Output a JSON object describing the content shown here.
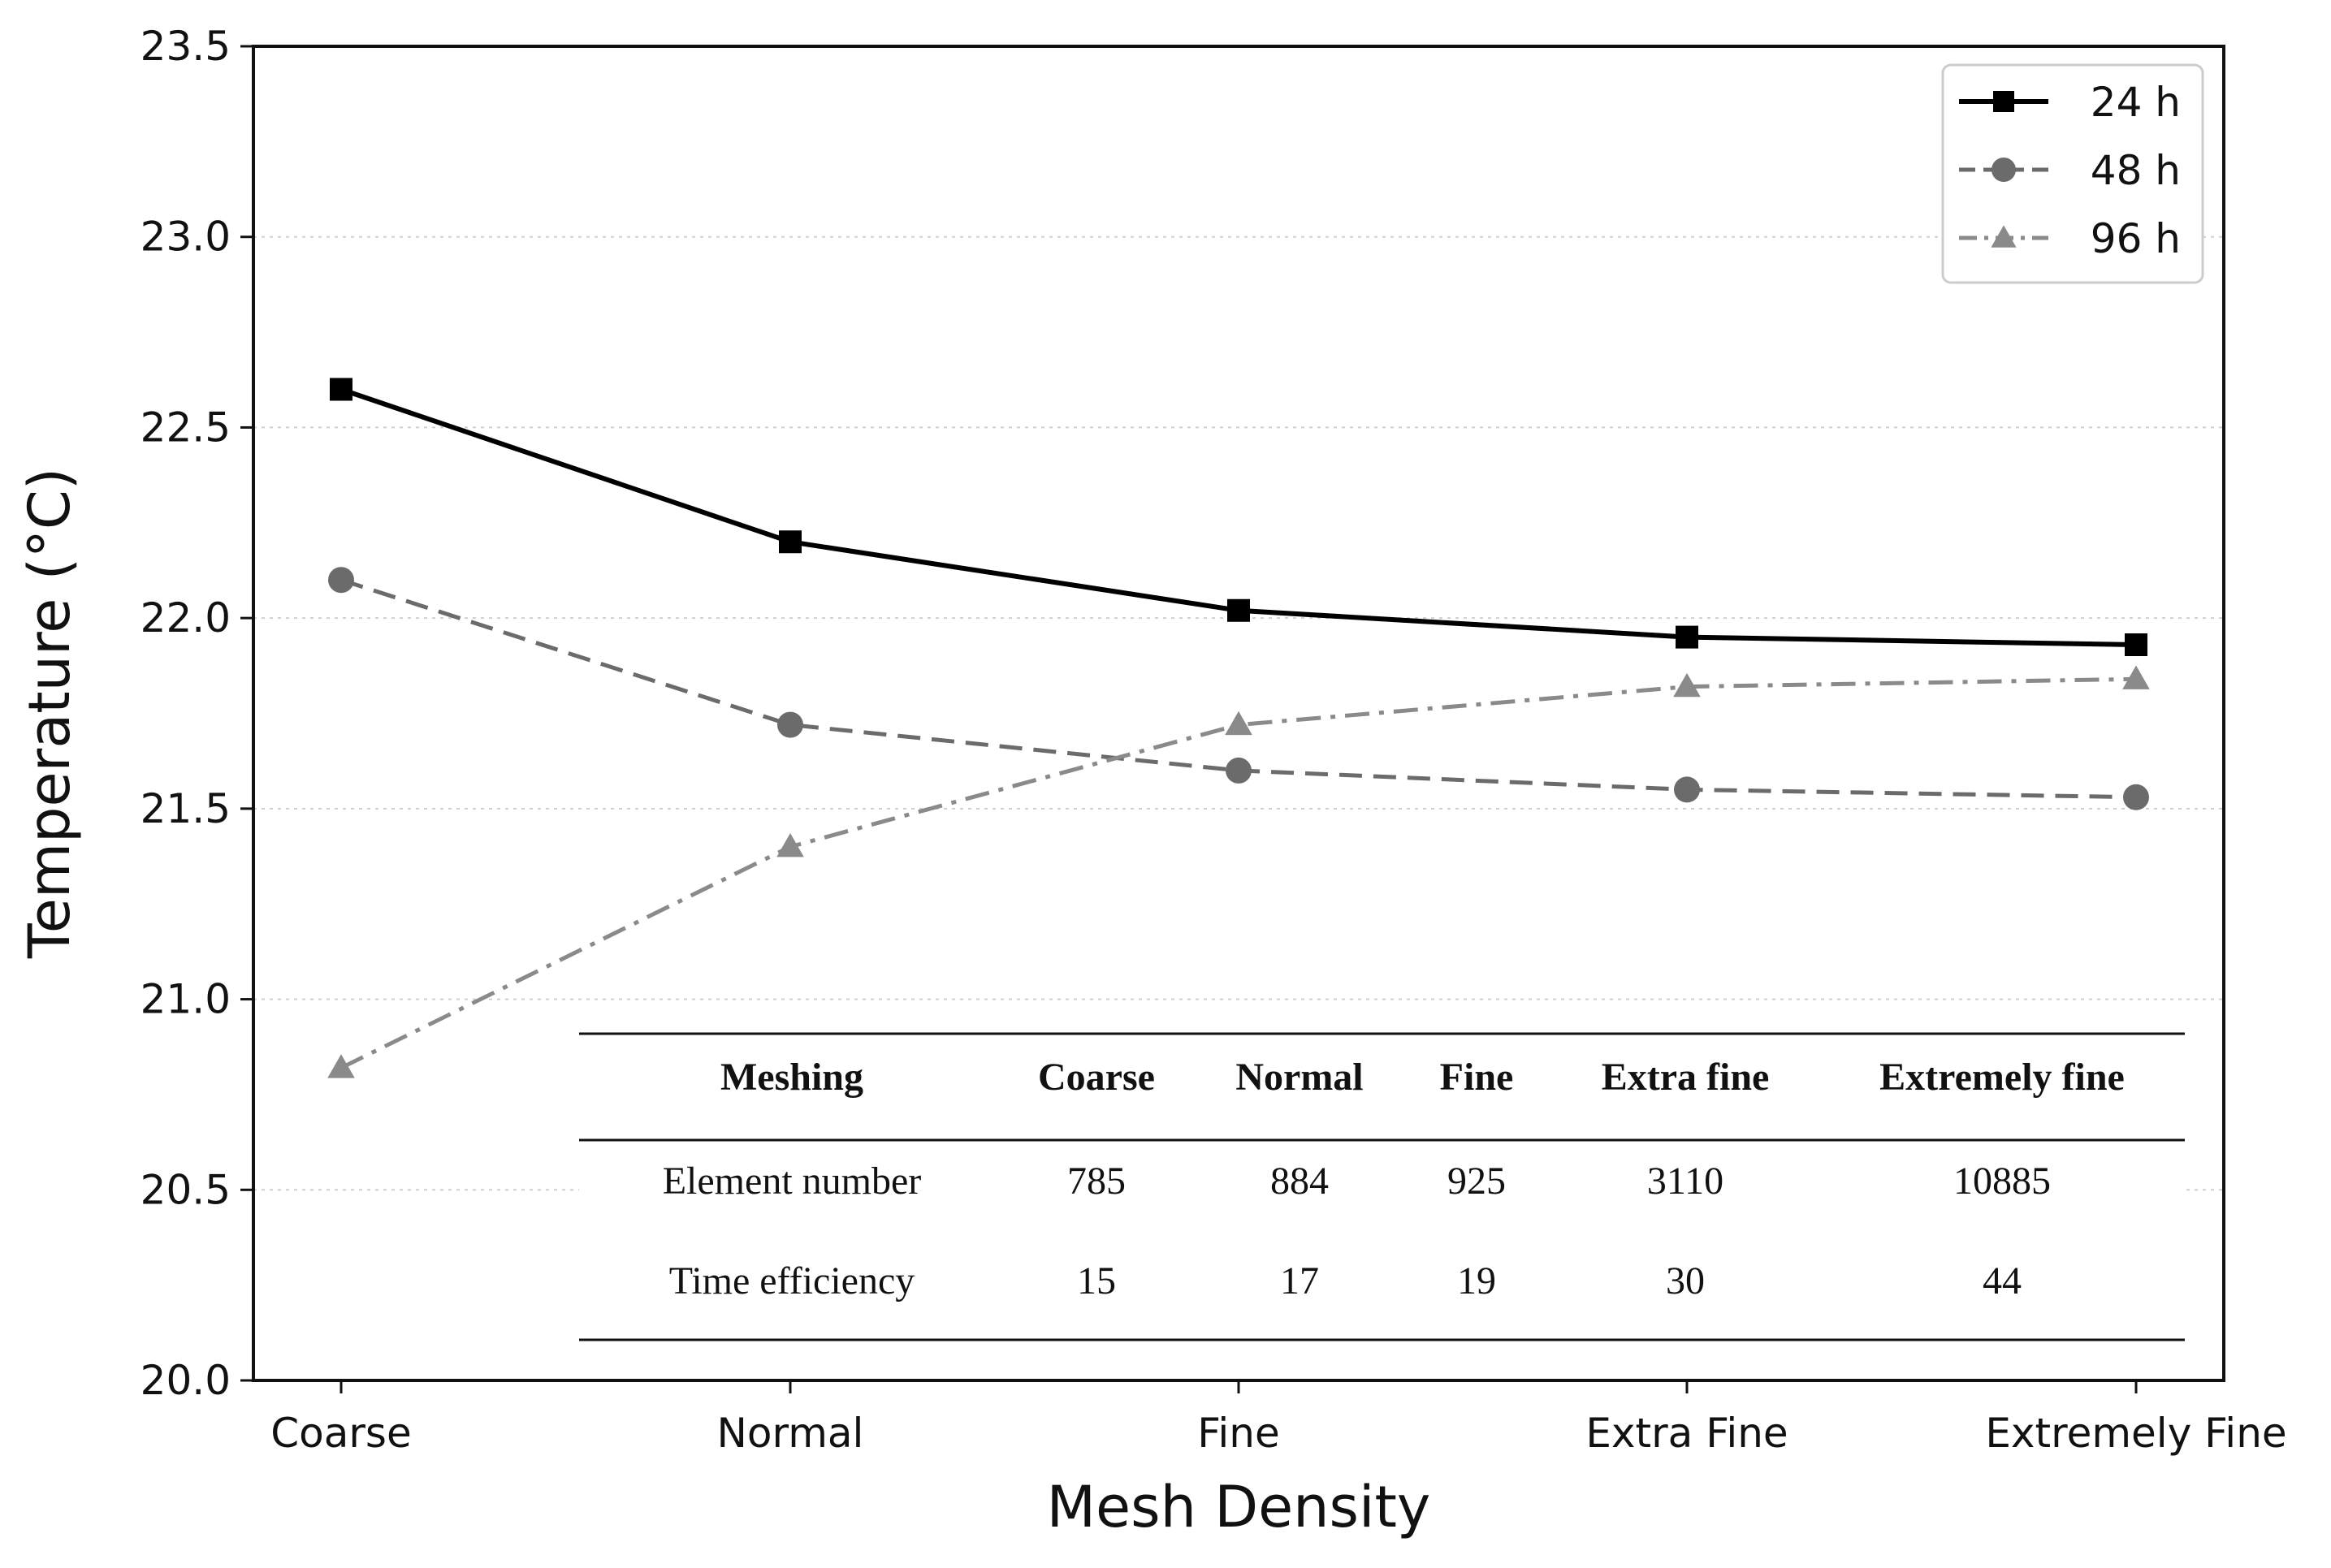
{
  "chart_data": {
    "type": "line",
    "title": "",
    "xlabel": "Mesh Density",
    "ylabel": "Temperature (°C)",
    "categories": [
      "Coarse",
      "Normal",
      "Fine",
      "Extra Fine",
      "Extremely Fine"
    ],
    "ylim": [
      20.0,
      23.5
    ],
    "yticks": [
      "20.0",
      "20.5",
      "21.0",
      "21.5",
      "22.0",
      "22.5",
      "23.0",
      "23.5"
    ],
    "grid": "horizontal dotted",
    "legend_position": "top-right",
    "series": [
      {
        "name": "24 h",
        "values": [
          22.6,
          22.2,
          22.02,
          21.95,
          21.93
        ],
        "color": "#000000",
        "dash": "solid",
        "marker": "square"
      },
      {
        "name": "48 h",
        "values": [
          22.1,
          21.72,
          21.6,
          21.55,
          21.53
        ],
        "color": "#6b6b6b",
        "dash": "dashed",
        "marker": "circle"
      },
      {
        "name": "96 h",
        "values": [
          20.82,
          21.4,
          21.72,
          21.82,
          21.84
        ],
        "color": "#8a8a8a",
        "dash": "dashdot",
        "marker": "triangle"
      }
    ],
    "inset_table": {
      "headers": [
        "Meshing",
        "Coarse",
        "Normal",
        "Fine",
        "Extra fine",
        "Extremely fine"
      ],
      "rows": [
        [
          "Element number",
          "785",
          "884",
          "925",
          "3110",
          "10885"
        ],
        [
          "Time efficiency",
          "15",
          "17",
          "19",
          "30",
          "44"
        ]
      ]
    }
  }
}
